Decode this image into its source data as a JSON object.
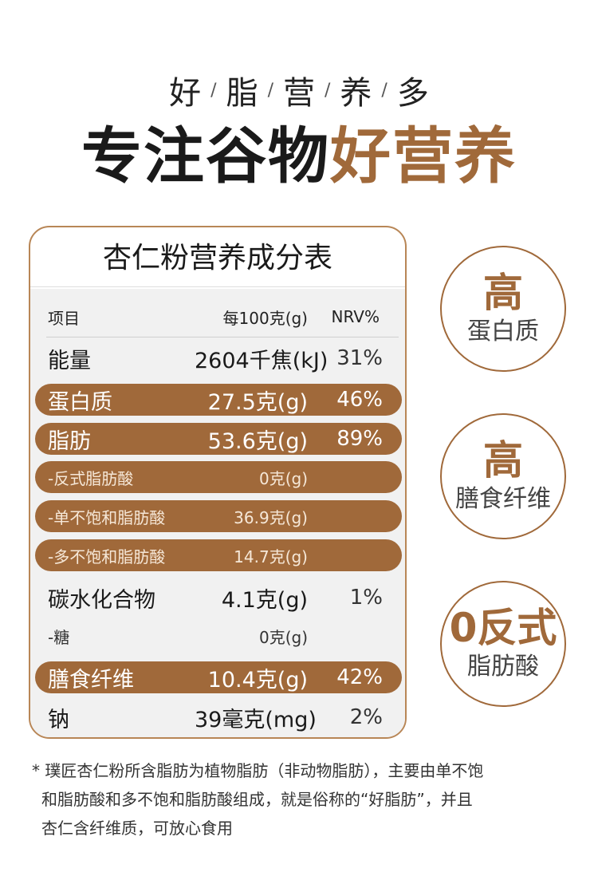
{
  "tagline": [
    "好",
    "脂",
    "营",
    "养",
    "多"
  ],
  "tagline_sep": "/",
  "headline": {
    "dark": "专注谷物",
    "accent": "好营养"
  },
  "table": {
    "title": "杏仁粉营养成分表",
    "header": {
      "item": "项目",
      "per100": "每100克(g)",
      "nrv": "NRV%"
    },
    "rows": [
      {
        "name": "能量",
        "value": "2604千焦(kJ)",
        "nrv": "31%"
      },
      {
        "name": "蛋白质",
        "value": "27.5克(g)",
        "nrv": "46%"
      },
      {
        "name": "脂肪",
        "value": "53.6克(g)",
        "nrv": "89%"
      },
      {
        "name": "-反式脂肪酸",
        "value": "0克(g)",
        "nrv": ""
      },
      {
        "name": "-单不饱和脂肪酸",
        "value": "36.9克(g)",
        "nrv": ""
      },
      {
        "name": "-多不饱和脂肪酸",
        "value": "14.7克(g)",
        "nrv": ""
      },
      {
        "name": "碳水化合物",
        "value": "4.1克(g)",
        "nrv": "1%"
      },
      {
        "name": "-糖",
        "value": "0克(g)",
        "nrv": ""
      },
      {
        "name": "膳食纤维",
        "value": "10.4克(g)",
        "nrv": "42%"
      },
      {
        "name": "钠",
        "value": "39毫克(mg)",
        "nrv": "2%"
      }
    ]
  },
  "badges": [
    {
      "big": "高",
      "small": "蛋白质"
    },
    {
      "big": "高",
      "small": "膳食纤维"
    },
    {
      "big": "0反式",
      "small": "脂肪酸"
    }
  ],
  "footnote": [
    "* 璞匠杏仁粉所含脂肪为植物脂肪（非动物脂肪），主要由单不饱",
    "和脂肪酸和多不饱和脂肪酸组成，就是俗称的“好脂肪”，并且",
    "杏仁含纤维质，可放心食用"
  ],
  "colors": {
    "accent": "#a0693a",
    "border": "#b88656",
    "panel": "#f1f1f1"
  }
}
